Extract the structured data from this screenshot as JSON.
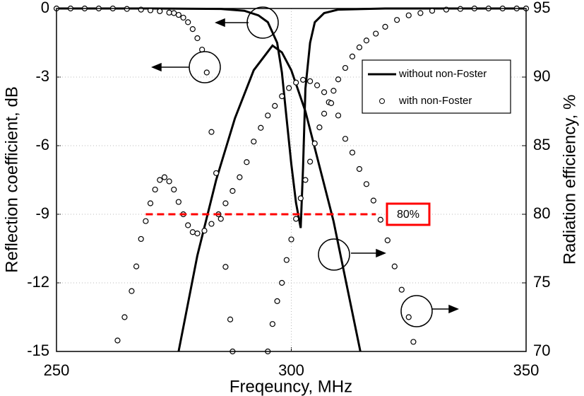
{
  "chart_data": {
    "type": "line",
    "xlabel": "Freqeuncy, MHz",
    "ylabel": "Reflection coefficient, dB",
    "y2label": "Radiation efficiency, %",
    "xlim": [
      250,
      350
    ],
    "xticks": [
      250,
      300,
      350
    ],
    "ylim": [
      -15,
      0
    ],
    "yticks": [
      0,
      -3,
      -6,
      -9,
      -12,
      -15
    ],
    "y2lim": [
      70,
      95
    ],
    "y2ticks": [
      70,
      75,
      80,
      85,
      90,
      95
    ],
    "grid": true,
    "legend": "upper right",
    "series": [
      {
        "name": "without non-Foster",
        "style": "line",
        "color": "#000000",
        "axis": "y",
        "x": [
          250,
          270,
          285,
          290,
          293,
          295,
          297,
          298,
          299,
          300,
          301,
          302,
          302.5,
          303,
          304,
          305,
          307,
          310,
          320,
          350
        ],
        "values": [
          0,
          0,
          -0.02,
          -0.1,
          -0.3,
          -0.6,
          -1.5,
          -2.8,
          -4.8,
          -6.8,
          -8.5,
          -9.6,
          -7,
          -3.5,
          -1.5,
          -0.6,
          -0.2,
          -0.05,
          0,
          0
        ]
      },
      {
        "style": "line",
        "color": "#000000",
        "axis": "y2",
        "x": [
          276,
          280,
          284,
          288,
          292,
          296,
          298,
          300,
          303,
          306,
          309,
          312,
          314.7
        ],
        "values": [
          70,
          77,
          82.5,
          87,
          90.5,
          92.3,
          91.8,
          90.5,
          87.5,
          83.5,
          79.5,
          74.5,
          70
        ]
      },
      {
        "name": "with non-Foster",
        "style": "markers",
        "color": "#000000",
        "axis": "y",
        "x": [
          250,
          253,
          256,
          259,
          262,
          265,
          268,
          270,
          272,
          274,
          275,
          276,
          277,
          278,
          279,
          280,
          281,
          282,
          283,
          284,
          285,
          286,
          287,
          287.5,
          291,
          295,
          296,
          297,
          298,
          299,
          300,
          301,
          302,
          303,
          304,
          305,
          306,
          307,
          308,
          309,
          310,
          311.5,
          313,
          314.5,
          316,
          318,
          320,
          322.5,
          325,
          327.5,
          330,
          333,
          336,
          339,
          342,
          345,
          348,
          350
        ],
        "values": [
          0,
          0,
          0,
          0,
          0,
          -0.02,
          -0.05,
          -0.08,
          -0.12,
          -0.18,
          -0.2,
          -0.28,
          -0.4,
          -0.6,
          -0.9,
          -1.3,
          -1.8,
          -2.8,
          -5.4,
          -7.2,
          -9.2,
          -11.3,
          -13.6,
          -15,
          null,
          -15,
          -13.8,
          -12.8,
          -12,
          -11,
          -10.1,
          -9.2,
          -8.3,
          -7.5,
          -6.7,
          -5.9,
          -5.2,
          -4.6,
          -4.1,
          -3.6,
          -3.1,
          -2.6,
          -2.1,
          -1.7,
          -1.4,
          -1.1,
          -0.8,
          -0.5,
          -0.3,
          -0.2,
          -0.1,
          -0.05,
          -0.02,
          0,
          0,
          0,
          0,
          0
        ]
      },
      {
        "style": "markers",
        "color": "#000000",
        "axis": "y2",
        "x": [
          263,
          264.5,
          266,
          267,
          268,
          269,
          270,
          271,
          272,
          273,
          274,
          275,
          276,
          277,
          278,
          279,
          280,
          281.5,
          283,
          284.5,
          286,
          287.5,
          289,
          290.5,
          292,
          293.5,
          295,
          296.5,
          298,
          299.5,
          301,
          302.5,
          304,
          305.5,
          307,
          308.5,
          310,
          311.5,
          313,
          314.5,
          316,
          317.5,
          319,
          320.5,
          322,
          323.5,
          325,
          326
        ],
        "values": [
          70.8,
          72.5,
          74.4,
          76.2,
          78.2,
          79.5,
          80.8,
          81.8,
          82.5,
          82.7,
          82.4,
          81.8,
          80.9,
          80,
          79.2,
          78.7,
          78.6,
          78.8,
          79.3,
          80,
          80.8,
          81.7,
          82.7,
          83.8,
          85.3,
          86.3,
          87.2,
          87.9,
          88.6,
          89.2,
          89.6,
          89.8,
          89.7,
          89.4,
          88.9,
          88.1,
          87.2,
          85.5,
          84.5,
          83.3,
          82.2,
          81,
          79.6,
          78.1,
          76.2,
          74.5,
          72.5,
          70.7
        ]
      }
    ],
    "threshold": {
      "value": 80,
      "axis": "y2",
      "x": [
        269,
        318
      ],
      "label": "80%",
      "color": "#ff0000"
    }
  }
}
